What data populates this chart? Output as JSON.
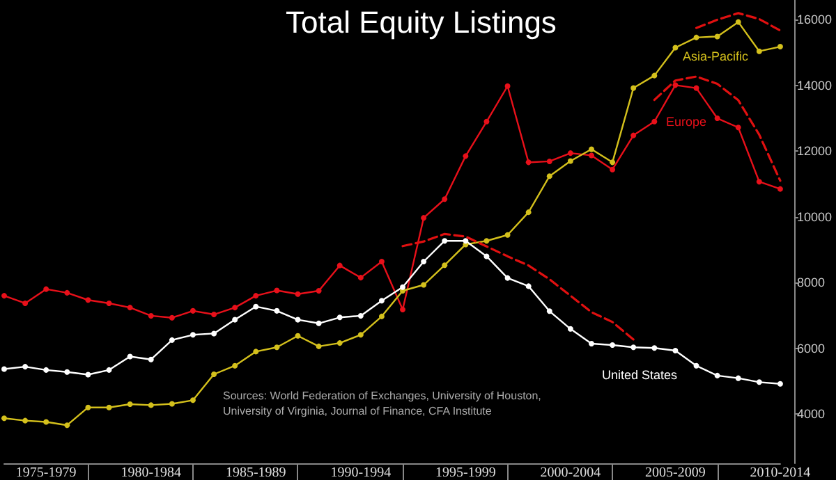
{
  "chart_data": {
    "type": "line",
    "title": "Total Equity Listings",
    "annotations": [
      "Sources: World Federation of Exchanges, University of Houston, University of Virginia, Journal of Finance, CFA Institute"
    ],
    "categories": [
      null,
      null,
      "1975-1979",
      null,
      null,
      null,
      null,
      "1980-1984",
      null,
      null,
      null,
      null,
      "1985-1989",
      null,
      null,
      null,
      null,
      "1990-1994",
      null,
      null,
      null,
      null,
      "1995-1999",
      null,
      null,
      null,
      null,
      "2000-2004",
      null,
      null,
      null,
      null,
      "2005-2009",
      null,
      null,
      null,
      null,
      "2010-2014"
    ],
    "series": [
      {
        "name": "Europe",
        "color": "#e8101a",
        "marker": "circle",
        "values": [
          7600,
          7370,
          7800,
          7690,
          7470,
          7370,
          7240,
          6990,
          6930,
          7140,
          7030,
          7240,
          7600,
          7760,
          7650,
          7750,
          8520,
          8150,
          8640,
          7180,
          9970,
          10540,
          11850,
          12900,
          13980,
          11660,
          11690,
          11940,
          11870,
          11440,
          12480,
          12900,
          14010,
          13920,
          13000,
          12720,
          11070,
          10850
        ]
      },
      {
        "name": "Asia-Pacific",
        "color": "#d4c01c",
        "marker": "circle",
        "values": [
          3870,
          3800,
          3760,
          3660,
          4200,
          4200,
          4300,
          4270,
          4310,
          4420,
          5210,
          5470,
          5900,
          6030,
          6380,
          6060,
          6160,
          6410,
          6970,
          7750,
          7930,
          8530,
          9160,
          9270,
          9450,
          10140,
          11240,
          11700,
          12060,
          11660,
          13920,
          14300,
          15150,
          15460,
          15490,
          15930,
          15040,
          15180
        ]
      },
      {
        "name": "United States",
        "color": "#ffffff",
        "marker": "circle",
        "values": [
          5370,
          5440,
          5340,
          5280,
          5200,
          5340,
          5750,
          5660,
          6250,
          6410,
          6450,
          6870,
          7270,
          7140,
          6870,
          6760,
          6940,
          6990,
          7450,
          7860,
          8640,
          9270,
          9270,
          8800,
          8140,
          7890,
          7130,
          6590,
          6140,
          6100,
          6030,
          6010,
          5930,
          5470,
          5170,
          5090,
          4970,
          4920
        ]
      },
      {
        "type": "line",
        "line_style": "dashed",
        "color": "#e01010",
        "values": [
          null,
          null,
          null,
          null,
          null,
          null,
          null,
          null,
          null,
          null,
          null,
          null,
          null,
          null,
          null,
          null,
          null,
          null,
          null,
          9110,
          9250,
          9480,
          9400,
          9100,
          8800,
          8520,
          8100,
          7600,
          7100,
          6800,
          6270,
          null,
          null,
          null,
          null,
          null,
          null,
          null
        ]
      },
      {
        "type": "line",
        "line_style": "dashed",
        "color": "#e01010",
        "values": [
          null,
          null,
          null,
          null,
          null,
          null,
          null,
          null,
          null,
          null,
          null,
          null,
          null,
          null,
          null,
          null,
          null,
          null,
          null,
          null,
          null,
          null,
          null,
          null,
          null,
          null,
          null,
          null,
          null,
          null,
          null,
          13560,
          14150,
          14270,
          14050,
          13550,
          12500,
          11100
        ]
      },
      {
        "type": "line",
        "line_style": "dashed",
        "color": "#e01010",
        "values": [
          null,
          null,
          null,
          null,
          null,
          null,
          null,
          null,
          null,
          null,
          null,
          null,
          null,
          null,
          null,
          null,
          null,
          null,
          null,
          null,
          null,
          null,
          null,
          null,
          null,
          null,
          null,
          null,
          null,
          null,
          null,
          null,
          null,
          15750,
          16000,
          16200,
          16020,
          15670
        ]
      }
    ],
    "line_style": "solid",
    "ylim": [
      2500,
      16600
    ],
    "yticks": [
      4000,
      6000,
      8000,
      10000,
      12000,
      14000,
      16000
    ]
  }
}
